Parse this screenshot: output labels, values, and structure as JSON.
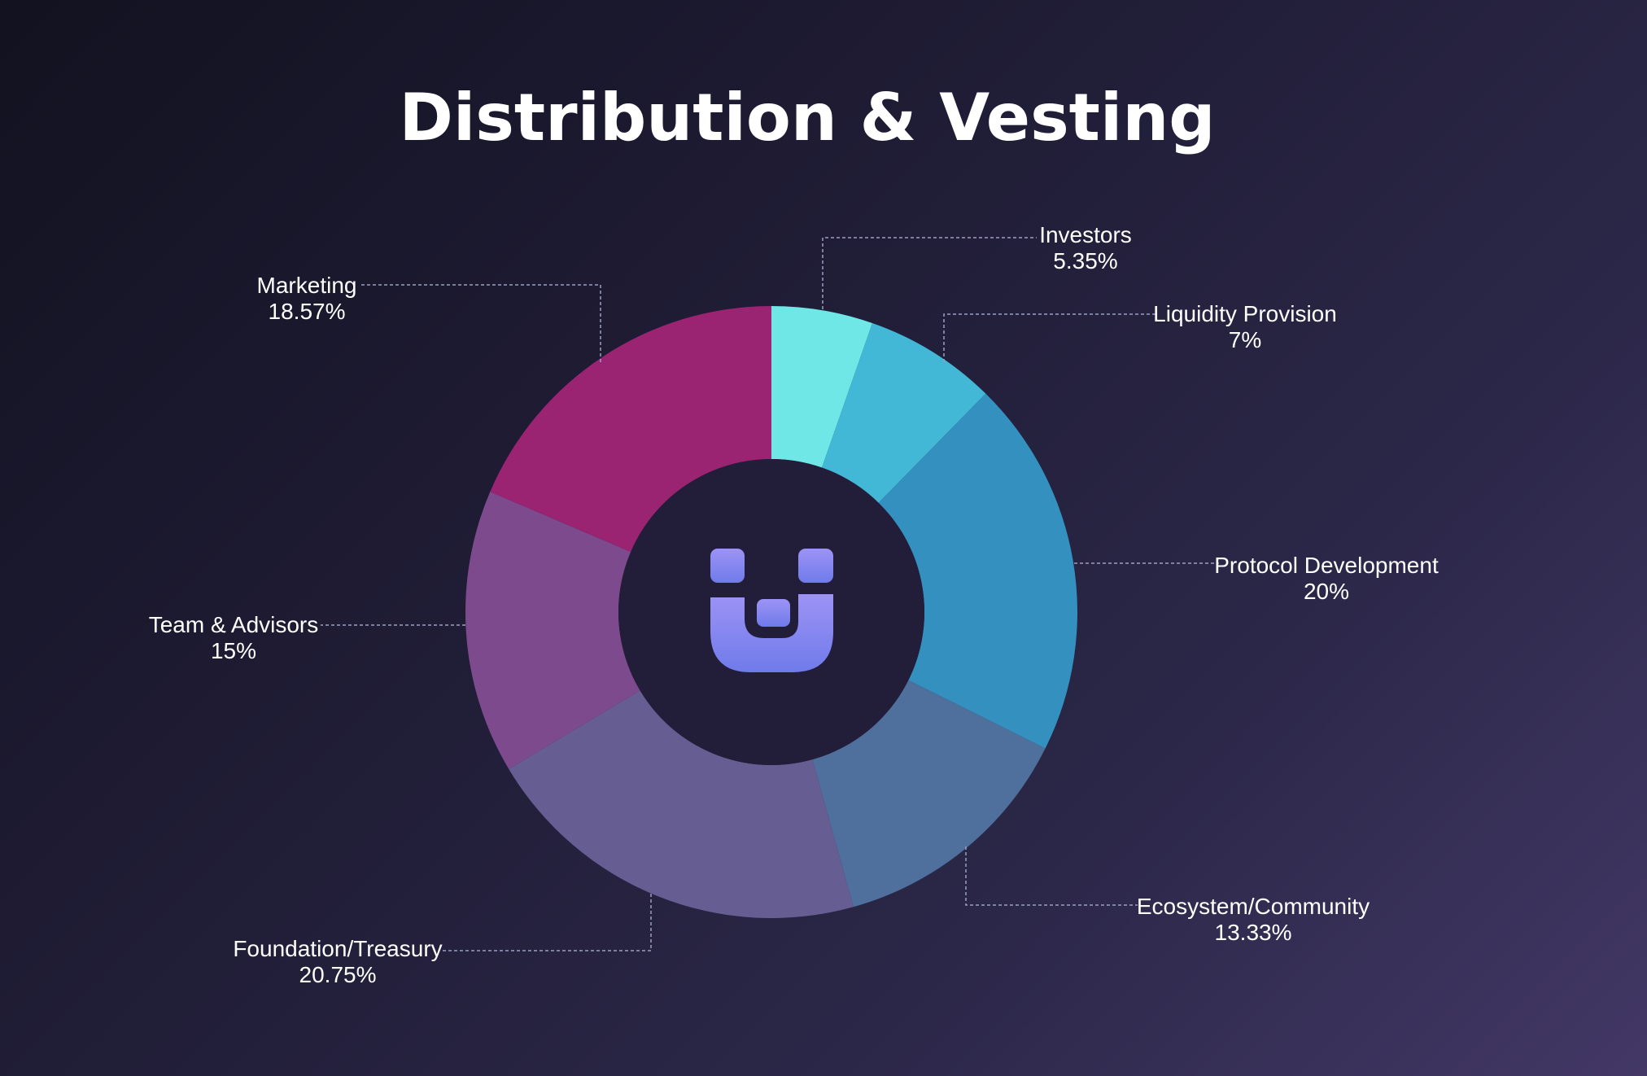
{
  "chart_data": {
    "type": "pie",
    "title": "Distribution & Vesting",
    "donut": true,
    "center_icon": "brand-logo-icon",
    "slices": [
      {
        "name": "Investors",
        "value": 5.35,
        "label": "5.35%",
        "color": "#6fe7e6"
      },
      {
        "name": "Liquidity Provision",
        "value": 7,
        "label": "7%",
        "color": "#42b7d6"
      },
      {
        "name": "Protocol Development",
        "value": 20,
        "label": "20%",
        "color": "#3390bf"
      },
      {
        "name": "Ecosystem/Community",
        "value": 13.33,
        "label": "13.33%",
        "color": "#4f6f9c"
      },
      {
        "name": "Foundation/Treasury",
        "value": 20.75,
        "label": "20.75%",
        "color": "#665d93"
      },
      {
        "name": "Team & Advisors",
        "value": 15,
        "label": "15%",
        "color": "#7d4b8d"
      },
      {
        "name": "Marketing",
        "value": 18.57,
        "label": "18.57%",
        "color": "#9a2472"
      }
    ]
  },
  "colors": {
    "center_disk": "#221d38",
    "logo_top": "#9d93f5",
    "logo_bottom": "#6f7bea",
    "leader_line": "#9aa0c0"
  }
}
